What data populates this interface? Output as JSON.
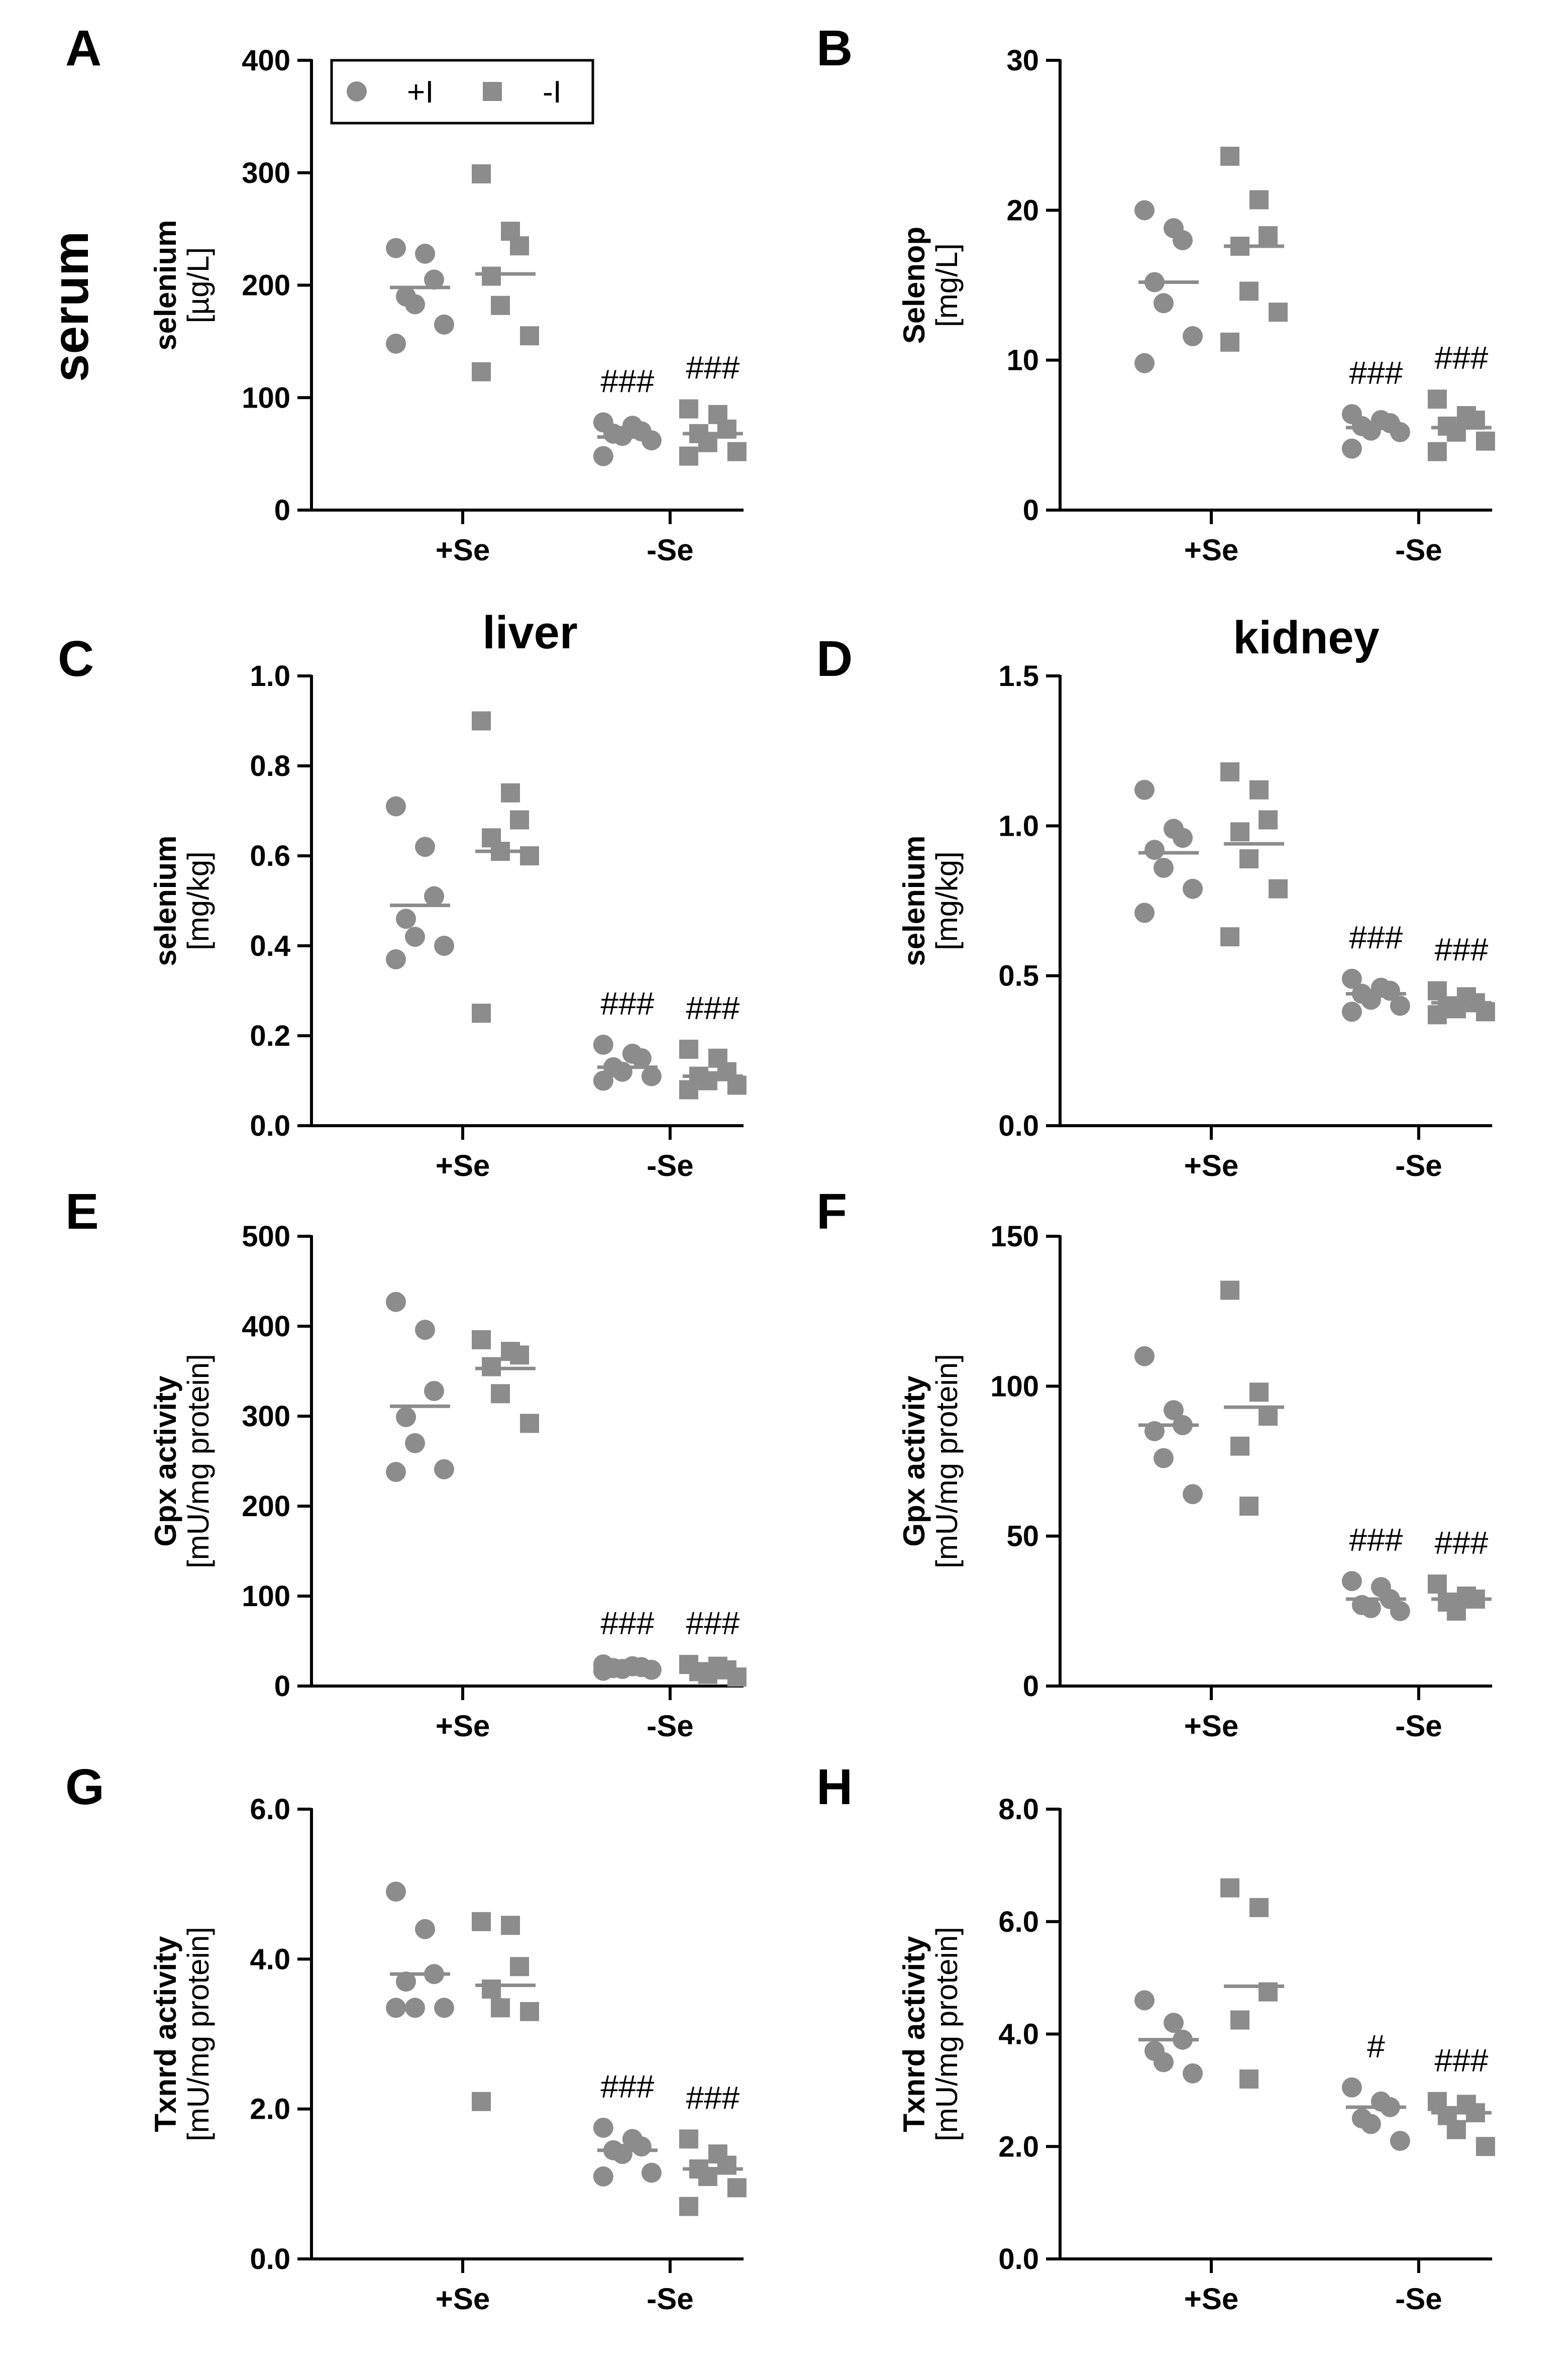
{
  "figure": {
    "sections": {
      "serum": "serum",
      "liver": "liver",
      "kidney": "kidney"
    },
    "legend": {
      "items": [
        {
          "label": "+I",
          "marker": "circle"
        },
        {
          "label": "-I",
          "marker": "square"
        }
      ]
    },
    "colors": {
      "marker": "#8c8c8c",
      "axis": "#000000",
      "mean_line": "#8c8c8c"
    },
    "categories": [
      "+Se",
      "-Se"
    ]
  },
  "chart_data": [
    {
      "panel": "A",
      "type": "scatter",
      "ylabel_line1": "selenium",
      "ylabel_line2": "[µg/L]",
      "ylim": [
        0,
        400
      ],
      "yticks": [
        0,
        100,
        200,
        300,
        400
      ],
      "ytick_labels": [
        "0",
        "100",
        "200",
        "300",
        "400"
      ],
      "categories": [
        "+Se",
        "-Se"
      ],
      "series": [
        {
          "name": "+I",
          "marker": "circle",
          "groups": [
            [
              233,
              228,
              205,
              190,
              183,
              165,
              148
            ],
            [
              78,
              75,
              70,
              68,
              66,
              62,
              48
            ]
          ],
          "means": [
            198,
            65
          ]
        },
        {
          "name": "-I",
          "marker": "square",
          "groups": [
            [
              299,
              248,
              235,
              208,
              182,
              155,
              123
            ],
            [
              90,
              85,
              72,
              68,
              60,
              52,
              48
            ]
          ],
          "means": [
            210,
            68
          ]
        }
      ],
      "annotations": [
        {
          "category": "-Se",
          "series": "+I",
          "text": "###"
        },
        {
          "category": "-Se",
          "series": "-I",
          "text": "###"
        }
      ]
    },
    {
      "panel": "B",
      "type": "scatter",
      "ylabel_line1": "Selenop",
      "ylabel_line2": "[mg/L]",
      "ylim": [
        0,
        30
      ],
      "yticks": [
        0,
        10,
        20,
        30
      ],
      "ytick_labels": [
        "0",
        "10",
        "20",
        "30"
      ],
      "categories": [
        "+Se",
        "-Se"
      ],
      "series": [
        {
          "name": "+I",
          "marker": "circle",
          "groups": [
            [
              20.0,
              18.8,
              18.0,
              15.2,
              13.8,
              11.6,
              9.8
            ],
            [
              6.4,
              6.0,
              5.8,
              5.6,
              5.3,
              5.2,
              4.1
            ]
          ],
          "means": [
            15.2,
            5.5
          ]
        },
        {
          "name": "-I",
          "marker": "square",
          "groups": [
            [
              23.6,
              20.7,
              18.3,
              17.6,
              14.6,
              13.2,
              11.2
            ],
            [
              7.4,
              6.3,
              6.0,
              5.6,
              5.2,
              4.6,
              3.9
            ]
          ],
          "means": [
            17.6,
            5.5
          ]
        }
      ],
      "annotations": [
        {
          "category": "-Se",
          "series": "+I",
          "text": "###"
        },
        {
          "category": "-Se",
          "series": "-I",
          "text": "###"
        }
      ]
    },
    {
      "panel": "C",
      "type": "scatter",
      "ylabel_line1": "selenium",
      "ylabel_line2": "[mg/kg]",
      "ylim": [
        0,
        1.0
      ],
      "yticks": [
        0,
        0.2,
        0.4,
        0.6,
        0.8,
        1.0
      ],
      "ytick_labels": [
        "0.0",
        "0.2",
        "0.4",
        "0.6",
        "0.8",
        "1.0"
      ],
      "categories": [
        "+Se",
        "-Se"
      ],
      "series": [
        {
          "name": "+I",
          "marker": "circle",
          "groups": [
            [
              0.71,
              0.62,
              0.51,
              0.46,
              0.42,
              0.4,
              0.37
            ],
            [
              0.18,
              0.16,
              0.15,
              0.13,
              0.12,
              0.11,
              0.1
            ]
          ],
          "means": [
            0.49,
            0.13
          ]
        },
        {
          "name": "-I",
          "marker": "square",
          "groups": [
            [
              0.9,
              0.74,
              0.68,
              0.64,
              0.61,
              0.6,
              0.25
            ],
            [
              0.17,
              0.15,
              0.12,
              0.11,
              0.1,
              0.09,
              0.08
            ]
          ],
          "means": [
            0.61,
            0.11
          ]
        }
      ],
      "annotations": [
        {
          "category": "-Se",
          "series": "+I",
          "text": "###"
        },
        {
          "category": "-Se",
          "series": "-I",
          "text": "###"
        }
      ]
    },
    {
      "panel": "D",
      "type": "scatter",
      "ylabel_line1": "selenium",
      "ylabel_line2": "[mg/kg]",
      "ylim": [
        0,
        1.5
      ],
      "yticks": [
        0,
        0.5,
        1.0,
        1.5
      ],
      "ytick_labels": [
        "0.0",
        "0.5",
        "1.0",
        "1.5"
      ],
      "categories": [
        "+Se",
        "-Se"
      ],
      "series": [
        {
          "name": "+I",
          "marker": "circle",
          "groups": [
            [
              1.12,
              0.99,
              0.96,
              0.92,
              0.86,
              0.79,
              0.71
            ],
            [
              0.49,
              0.46,
              0.45,
              0.44,
              0.42,
              0.4,
              0.38
            ]
          ],
          "means": [
            0.91,
            0.44
          ]
        },
        {
          "name": "-I",
          "marker": "square",
          "groups": [
            [
              1.18,
              1.12,
              1.02,
              0.98,
              0.89,
              0.79,
              0.63
            ],
            [
              0.45,
              0.43,
              0.41,
              0.4,
              0.39,
              0.38,
              0.37
            ]
          ],
          "means": [
            0.94,
            0.41
          ]
        }
      ],
      "annotations": [
        {
          "category": "-Se",
          "series": "+I",
          "text": "###"
        },
        {
          "category": "-Se",
          "series": "-I",
          "text": "###"
        }
      ]
    },
    {
      "panel": "E",
      "type": "scatter",
      "ylabel_line1": "Gpx activity",
      "ylabel_line2": "[mU/mg protein]",
      "ylim": [
        0,
        500
      ],
      "yticks": [
        0,
        100,
        200,
        300,
        400,
        500
      ],
      "ytick_labels": [
        "0",
        "100",
        "200",
        "300",
        "400",
        "500"
      ],
      "categories": [
        "+Se",
        "-Se"
      ],
      "series": [
        {
          "name": "+I",
          "marker": "circle",
          "groups": [
            [
              427,
              396,
              328,
              299,
              270,
              241,
              238
            ],
            [
              24,
              22,
              21,
              20,
              19,
              18,
              17
            ]
          ],
          "means": [
            311,
            20
          ]
        },
        {
          "name": "-I",
          "marker": "square",
          "groups": [
            [
              385,
              372,
              368,
              355,
              325,
              292
            ],
            [
              24,
              22,
              18,
              16,
              13,
              10
            ]
          ],
          "means": [
            353,
            17
          ]
        }
      ],
      "annotations": [
        {
          "category": "-Se",
          "series": "+I",
          "text": "###"
        },
        {
          "category": "-Se",
          "series": "-I",
          "text": "###"
        }
      ]
    },
    {
      "panel": "F",
      "type": "scatter",
      "ylabel_line1": "Gpx activity",
      "ylabel_line2": "[mU/mg protein]",
      "ylim": [
        0,
        150
      ],
      "yticks": [
        0,
        50,
        100,
        150
      ],
      "ytick_labels": [
        "0",
        "50",
        "100",
        "150"
      ],
      "categories": [
        "+Se",
        "-Se"
      ],
      "series": [
        {
          "name": "+I",
          "marker": "circle",
          "groups": [
            [
              110,
              92,
              87,
              85,
              76,
              64
            ],
            [
              35,
              33,
              29,
              27,
              26,
              25
            ]
          ],
          "means": [
            87,
            29
          ]
        },
        {
          "name": "-I",
          "marker": "square",
          "groups": [
            [
              132,
              98,
              90,
              80,
              60
            ],
            [
              34,
              30,
              29,
              28,
              25
            ]
          ],
          "means": [
            93,
            29
          ]
        }
      ],
      "annotations": [
        {
          "category": "-Se",
          "series": "+I",
          "text": "###"
        },
        {
          "category": "-Se",
          "series": "-I",
          "text": "###"
        }
      ]
    },
    {
      "panel": "G",
      "type": "scatter",
      "ylabel_line1": "Txnrd activity",
      "ylabel_line2": "[mU/mg protein]",
      "ylim": [
        0,
        6.0
      ],
      "yticks": [
        0,
        2.0,
        4.0,
        6.0
      ],
      "ytick_labels": [
        "0.0",
        "2.0",
        "4.0",
        "6.0"
      ],
      "categories": [
        "+Se",
        "-Se"
      ],
      "series": [
        {
          "name": "+I",
          "marker": "circle",
          "groups": [
            [
              4.9,
              4.4,
              3.8,
              3.7,
              3.35,
              3.35,
              3.35
            ],
            [
              1.75,
              1.6,
              1.5,
              1.45,
              1.4,
              1.15,
              1.1
            ]
          ],
          "means": [
            3.8,
            1.45
          ]
        },
        {
          "name": "-I",
          "marker": "square",
          "groups": [
            [
              4.5,
              4.45,
              3.9,
              3.6,
              3.35,
              3.3,
              2.1
            ],
            [
              1.6,
              1.4,
              1.25,
              1.2,
              1.1,
              0.95,
              0.7
            ]
          ],
          "means": [
            3.65,
            1.2
          ]
        }
      ],
      "annotations": [
        {
          "category": "-Se",
          "series": "+I",
          "text": "###"
        },
        {
          "category": "-Se",
          "series": "-I",
          "text": "###"
        }
      ]
    },
    {
      "panel": "H",
      "type": "scatter",
      "ylabel_line1": "Txnrd activity",
      "ylabel_line2": "[mU/mg protein]",
      "ylim": [
        0,
        8.0
      ],
      "yticks": [
        0,
        2.0,
        4.0,
        6.0,
        8.0
      ],
      "ytick_labels": [
        "0.0",
        "2.0",
        "4.0",
        "6.0",
        "8.0"
      ],
      "categories": [
        "+Se",
        "-Se"
      ],
      "series": [
        {
          "name": "+I",
          "marker": "circle",
          "groups": [
            [
              4.6,
              4.2,
              3.9,
              3.7,
              3.5,
              3.3
            ],
            [
              3.05,
              2.8,
              2.7,
              2.5,
              2.4,
              2.1
            ]
          ],
          "means": [
            3.9,
            2.7
          ]
        },
        {
          "name": "-I",
          "marker": "square",
          "groups": [
            [
              6.6,
              6.25,
              4.75,
              4.25,
              3.2
            ],
            [
              2.8,
              2.75,
              2.6,
              2.55,
              2.3,
              2.0
            ]
          ],
          "means": [
            4.85,
            2.6
          ]
        }
      ],
      "annotations": [
        {
          "category": "-Se",
          "series": "+I",
          "text": "#"
        },
        {
          "category": "-Se",
          "series": "-I",
          "text": "###"
        }
      ]
    }
  ]
}
